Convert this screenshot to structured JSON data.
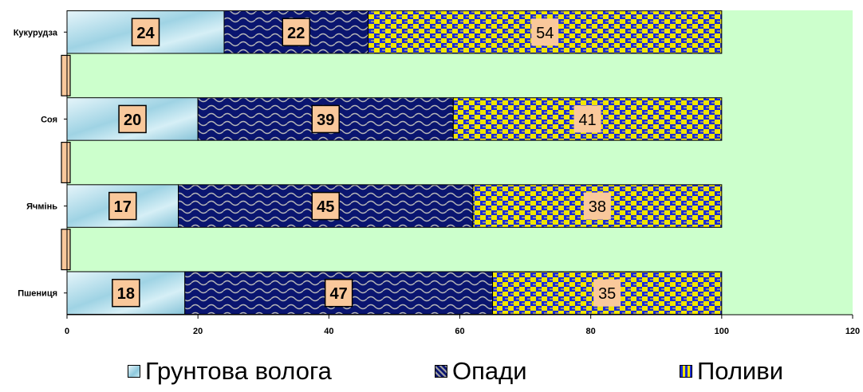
{
  "chart_data": {
    "type": "bar",
    "orientation": "horizontal",
    "stacked": true,
    "categories": [
      "Кукурудза",
      "Соя",
      "Ячмінь",
      "Пшениця"
    ],
    "series": [
      {
        "name": "Грунтова волога",
        "values": [
          24,
          20,
          17,
          18
        ],
        "color": "#a9dcea"
      },
      {
        "name": "Опади",
        "values": [
          22,
          39,
          45,
          47
        ],
        "color": "#0a1570"
      },
      {
        "name": "Поливи",
        "values": [
          54,
          41,
          38,
          35
        ],
        "color": "#f1e600"
      }
    ],
    "spacer_rows": 3,
    "xlim": [
      0,
      120
    ],
    "xticks": [
      "0",
      "20",
      "40",
      "60",
      "80",
      "100",
      "120"
    ],
    "plot_background": "#ccffcc",
    "label_background": "#f9c89b",
    "legend_position": "bottom",
    "grid": false
  },
  "legend": {
    "items": [
      {
        "label": "Грунтова волога",
        "swatch": "sw-soil"
      },
      {
        "label": "Опади",
        "swatch": "sw-rain"
      },
      {
        "label": "Поливи",
        "swatch": "sw-irr"
      }
    ]
  }
}
